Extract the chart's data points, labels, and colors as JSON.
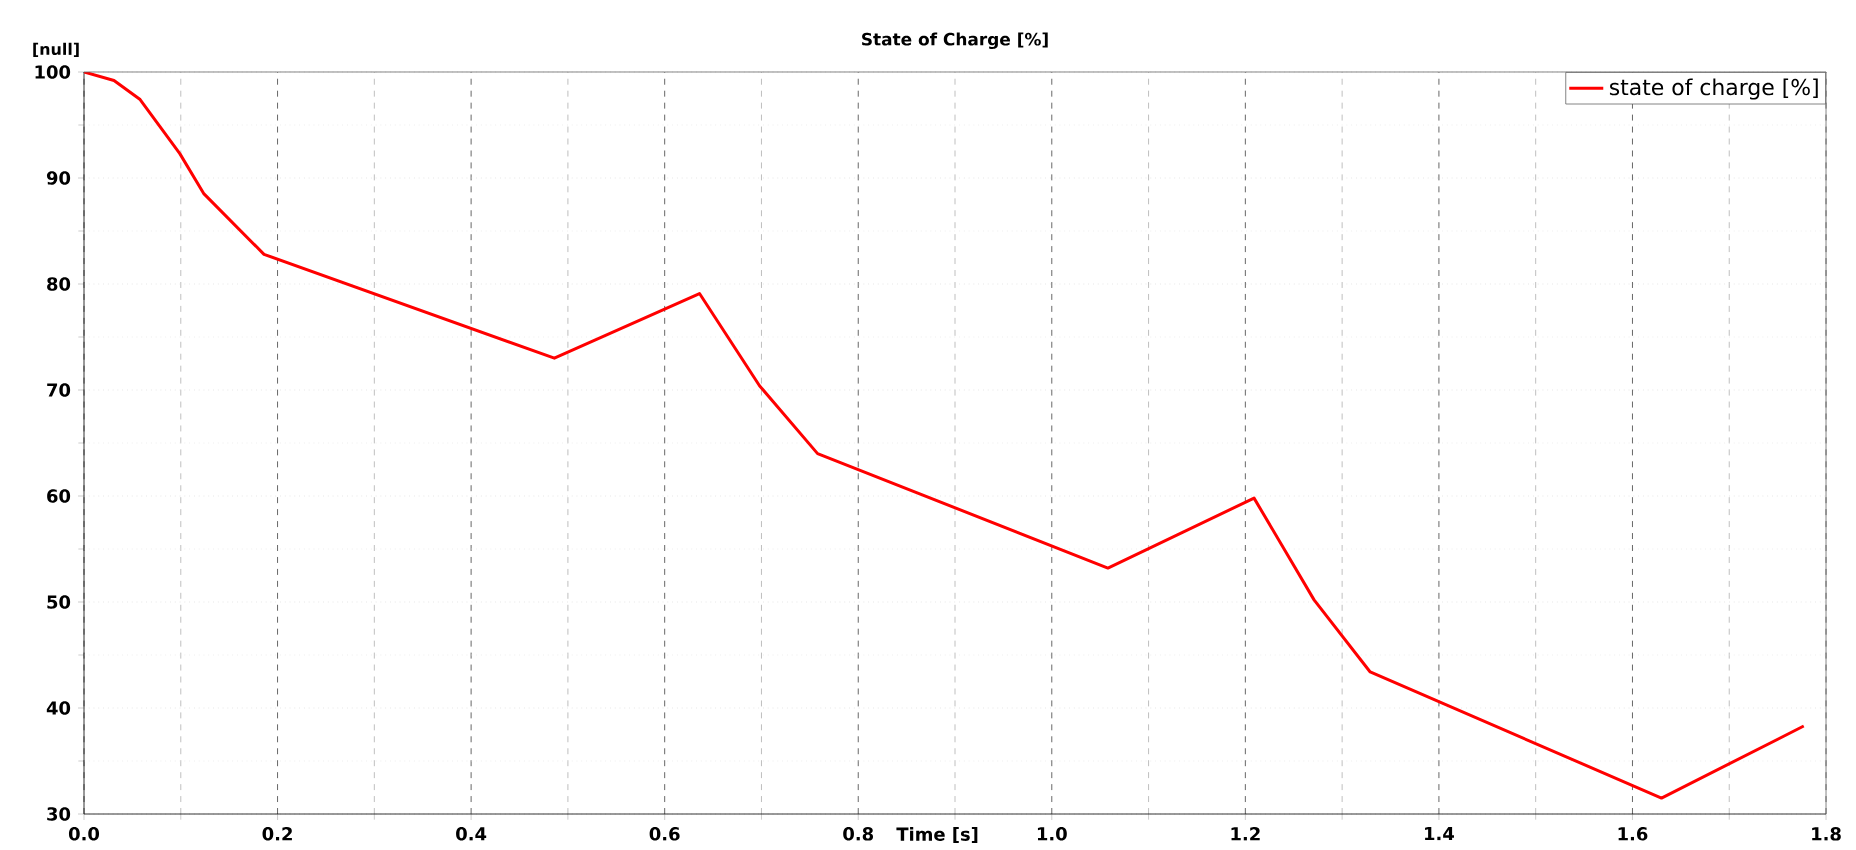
{
  "chart_data": {
    "type": "line",
    "title": "State of Charge [%]",
    "xlabel": "Time [s]",
    "ylabel": "[null]",
    "x": [
      0,
      0.031,
      0.058,
      0.099,
      0.124,
      0.186,
      0.486,
      0.636,
      0.698,
      0.758,
      1.058,
      1.209,
      1.271,
      1.329,
      1.63,
      1.777
    ],
    "series": [
      {
        "name": "state of charge [%]",
        "color": "#ff0000",
        "values": [
          100,
          99.2,
          97.4,
          92.3,
          88.5,
          82.8,
          73.0,
          79.1,
          70.4,
          64.0,
          53.2,
          59.8,
          50.2,
          43.4,
          31.5,
          38.3
        ]
      }
    ],
    "xlim": [
      0,
      1.8
    ],
    "ylim": [
      30,
      100
    ],
    "xticks": [
      {
        "value": 0,
        "label": "0.0"
      },
      0.2,
      0.4,
      0.6,
      0.8,
      {
        "value": 1,
        "label": "1.0"
      },
      1.2,
      1.4,
      1.6,
      1.8
    ],
    "yticks": [
      30,
      40,
      50,
      60,
      70,
      80,
      90,
      100
    ],
    "grid": true,
    "legend": "top right",
    "marker": "none",
    "line_style": "solid"
  }
}
